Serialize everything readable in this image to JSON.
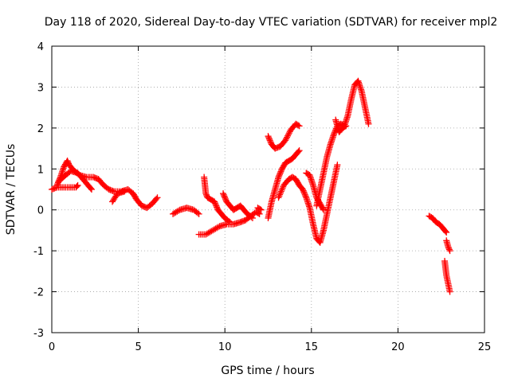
{
  "chart_data": {
    "type": "scatter",
    "title": "Day 118 of 2020, Sidereal Day-to-day VTEC variation (SDTVAR) for receiver mpl2",
    "xlabel": "GPS time / hours",
    "ylabel": "SDTVAR / TECUs",
    "xlim": [
      0,
      25
    ],
    "ylim": [
      -3,
      4
    ],
    "xticks": [
      "0",
      "5",
      "10",
      "15",
      "20",
      "25"
    ],
    "yticks": [
      "-3",
      "-2",
      "-1",
      "0",
      "1",
      "2",
      "3",
      "4"
    ],
    "grid": true,
    "marker": "+",
    "color": "#ff0000",
    "segments": [
      [
        [
          0.0,
          0.5
        ],
        [
          0.3,
          0.55
        ],
        [
          0.6,
          0.55
        ],
        [
          1.0,
          0.55
        ],
        [
          1.4,
          0.55
        ],
        [
          1.5,
          0.6
        ]
      ],
      [
        [
          0.3,
          0.6
        ],
        [
          0.5,
          0.8
        ],
        [
          0.7,
          1.05
        ],
        [
          0.9,
          1.2
        ],
        [
          1.0,
          1.1
        ],
        [
          1.3,
          0.95
        ],
        [
          1.6,
          0.85
        ],
        [
          2.0,
          0.8
        ],
        [
          2.4,
          0.8
        ],
        [
          2.7,
          0.75
        ],
        [
          3.0,
          0.6
        ],
        [
          3.3,
          0.5
        ],
        [
          3.6,
          0.45
        ],
        [
          4.0,
          0.45
        ],
        [
          4.4,
          0.5
        ],
        [
          4.7,
          0.4
        ],
        [
          4.9,
          0.25
        ],
        [
          5.2,
          0.1
        ],
        [
          5.5,
          0.05
        ],
        [
          5.8,
          0.15
        ],
        [
          6.1,
          0.3
        ]
      ],
      [
        [
          0.4,
          0.7
        ],
        [
          0.8,
          0.85
        ],
        [
          1.1,
          0.95
        ],
        [
          1.5,
          0.9
        ],
        [
          1.8,
          0.75
        ],
        [
          2.1,
          0.6
        ],
        [
          2.3,
          0.5
        ]
      ],
      [
        [
          3.5,
          0.2
        ],
        [
          3.8,
          0.4
        ],
        [
          4.2,
          0.45
        ]
      ],
      [
        [
          7.0,
          -0.1
        ],
        [
          7.4,
          0.0
        ],
        [
          7.8,
          0.05
        ],
        [
          8.2,
          0.0
        ],
        [
          8.5,
          -0.1
        ]
      ],
      [
        [
          8.5,
          -0.6
        ],
        [
          8.9,
          -0.6
        ],
        [
          9.3,
          -0.5
        ],
        [
          9.7,
          -0.4
        ],
        [
          10.1,
          -0.35
        ],
        [
          10.5,
          -0.35
        ],
        [
          10.9,
          -0.3
        ],
        [
          11.2,
          -0.25
        ],
        [
          11.5,
          -0.15
        ],
        [
          11.8,
          -0.05
        ],
        [
          12.0,
          -0.1
        ]
      ],
      [
        [
          8.8,
          0.8
        ],
        [
          8.9,
          0.4
        ],
        [
          9.0,
          0.3
        ],
        [
          9.2,
          0.25
        ],
        [
          9.4,
          0.2
        ],
        [
          9.6,
          0.0
        ],
        [
          9.8,
          -0.1
        ],
        [
          10.0,
          -0.2
        ],
        [
          10.3,
          -0.3
        ]
      ],
      [
        [
          9.9,
          0.4
        ],
        [
          10.1,
          0.2
        ],
        [
          10.3,
          0.1
        ],
        [
          10.5,
          0.0
        ],
        [
          10.7,
          0.05
        ],
        [
          10.9,
          0.1
        ],
        [
          11.1,
          0.0
        ],
        [
          11.3,
          -0.1
        ],
        [
          11.6,
          -0.2
        ]
      ],
      [
        [
          11.9,
          0.05
        ],
        [
          12.1,
          0.0
        ]
      ],
      [
        [
          12.5,
          1.8
        ],
        [
          12.7,
          1.6
        ],
        [
          12.9,
          1.5
        ],
        [
          13.2,
          1.55
        ],
        [
          13.5,
          1.7
        ],
        [
          13.8,
          1.95
        ],
        [
          14.1,
          2.1
        ],
        [
          14.3,
          2.05
        ]
      ],
      [
        [
          12.5,
          -0.2
        ],
        [
          12.7,
          0.2
        ],
        [
          12.9,
          0.5
        ],
        [
          13.1,
          0.8
        ],
        [
          13.3,
          1.0
        ],
        [
          13.5,
          1.15
        ],
        [
          13.7,
          1.2
        ],
        [
          13.9,
          1.25
        ],
        [
          14.1,
          1.35
        ],
        [
          14.3,
          1.45
        ]
      ],
      [
        [
          13.1,
          0.3
        ],
        [
          13.4,
          0.6
        ],
        [
          13.7,
          0.75
        ],
        [
          13.9,
          0.8
        ],
        [
          14.1,
          0.75
        ],
        [
          14.3,
          0.6
        ],
        [
          14.5,
          0.5
        ],
        [
          14.7,
          0.3
        ],
        [
          14.9,
          0.05
        ],
        [
          15.1,
          -0.35
        ],
        [
          15.3,
          -0.7
        ],
        [
          15.5,
          -0.8
        ],
        [
          15.7,
          -0.5
        ],
        [
          15.9,
          -0.1
        ],
        [
          16.1,
          0.3
        ],
        [
          16.3,
          0.7
        ],
        [
          16.5,
          1.1
        ]
      ],
      [
        [
          14.7,
          0.9
        ],
        [
          14.9,
          0.85
        ],
        [
          15.1,
          0.6
        ],
        [
          15.3,
          0.3
        ],
        [
          15.5,
          0.15
        ],
        [
          15.7,
          0.0
        ]
      ],
      [
        [
          15.3,
          0.1
        ],
        [
          15.5,
          0.5
        ],
        [
          15.7,
          0.9
        ],
        [
          15.9,
          1.3
        ],
        [
          16.1,
          1.6
        ],
        [
          16.3,
          1.85
        ],
        [
          16.5,
          2.05
        ],
        [
          16.7,
          2.1
        ],
        [
          16.9,
          2.05
        ],
        [
          17.1,
          2.3
        ],
        [
          17.3,
          2.7
        ],
        [
          17.5,
          3.05
        ],
        [
          17.7,
          3.15
        ],
        [
          17.9,
          2.9
        ],
        [
          18.1,
          2.5
        ],
        [
          18.3,
          2.1
        ]
      ],
      [
        [
          16.4,
          2.2
        ],
        [
          16.6,
          1.9
        ],
        [
          16.8,
          2.0
        ],
        [
          17.0,
          2.05
        ]
      ],
      [
        [
          21.8,
          -0.15
        ],
        [
          22.0,
          -0.2
        ],
        [
          22.2,
          -0.3
        ],
        [
          22.4,
          -0.35
        ],
        [
          22.6,
          -0.45
        ],
        [
          22.8,
          -0.55
        ]
      ],
      [
        [
          22.8,
          -0.75
        ],
        [
          22.9,
          -0.9
        ],
        [
          23.0,
          -1.0
        ]
      ],
      [
        [
          22.7,
          -1.25
        ],
        [
          22.8,
          -1.6
        ],
        [
          22.9,
          -1.8
        ],
        [
          23.0,
          -2.0
        ]
      ]
    ]
  }
}
